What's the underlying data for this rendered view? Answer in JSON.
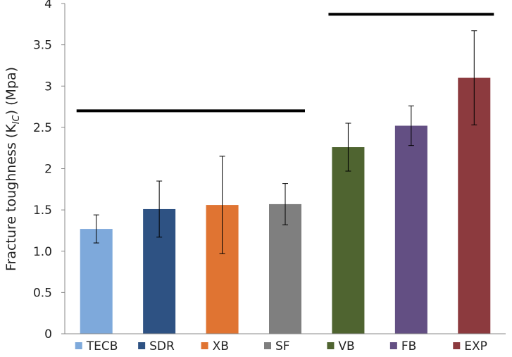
{
  "chart_data": {
    "type": "bar",
    "title": "",
    "xlabel": "",
    "ylabel": {
      "prefix": "Fracture toughness (K",
      "subscript": "IC",
      "suffix": ") (Mpa)"
    },
    "categories": [
      "TECB",
      "SDR",
      "XB",
      "SF",
      "VB",
      "FB",
      "EXP"
    ],
    "values": [
      1.27,
      1.51,
      1.56,
      1.57,
      2.26,
      2.52,
      3.1
    ],
    "errors": [
      0.17,
      0.34,
      0.59,
      0.25,
      0.29,
      0.24,
      0.57
    ],
    "colors": [
      "#7ea9db",
      "#2e5283",
      "#e07432",
      "#7f7f7f",
      "#4f6430",
      "#634f83",
      "#8c3a3e"
    ],
    "ylim": [
      0,
      4
    ],
    "yticks": [
      {
        "value": 0,
        "label": "0"
      },
      {
        "value": 0.5,
        "label": "0.5"
      },
      {
        "value": 1.0,
        "label": "1.0"
      },
      {
        "value": 1.5,
        "label": "1.5"
      },
      {
        "value": 2,
        "label": "2"
      },
      {
        "value": 2.5,
        "label": "2.5"
      },
      {
        "value": 3,
        "label": "3"
      },
      {
        "value": 3.5,
        "label": "3.5"
      },
      {
        "value": 4,
        "label": "4"
      }
    ],
    "grid": false,
    "legend": "bottom",
    "annotations": [
      {
        "type": "group-line",
        "from": "TECB",
        "to": "SF",
        "y": 2.7
      },
      {
        "type": "group-line",
        "from": "VB",
        "to": "EXP",
        "y": 3.87
      }
    ]
  }
}
